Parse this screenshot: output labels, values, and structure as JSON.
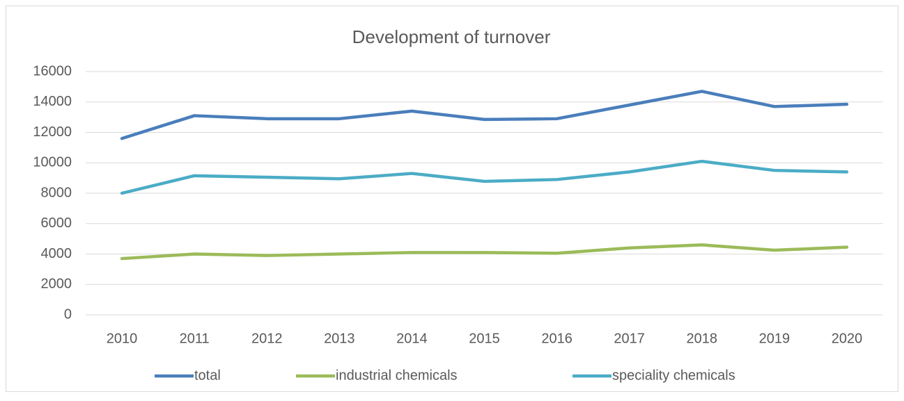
{
  "chart_data": {
    "type": "line",
    "title": "Development of turnover",
    "categories": [
      "2010",
      "2011",
      "2012",
      "2013",
      "2014",
      "2015",
      "2016",
      "2017",
      "2018",
      "2019",
      "2020"
    ],
    "series": [
      {
        "name": "total",
        "color": "#4a7ebb",
        "values": [
          11600,
          13100,
          12900,
          12900,
          13400,
          12850,
          12900,
          13800,
          14700,
          13700,
          13850
        ]
      },
      {
        "name": "industrial chemicals",
        "color": "#9bbb59",
        "values": [
          3700,
          4000,
          3900,
          4000,
          4100,
          4100,
          4050,
          4400,
          4600,
          4250,
          4450
        ]
      },
      {
        "name": "speciality chemicals",
        "color": "#4bacc6",
        "values": [
          8000,
          9150,
          9050,
          8950,
          9300,
          8780,
          8900,
          9400,
          10100,
          9500,
          9400
        ]
      }
    ],
    "ylim": [
      0,
      16000
    ],
    "yticks": [
      0,
      2000,
      4000,
      6000,
      8000,
      10000,
      12000,
      14000,
      16000
    ],
    "grid": true,
    "legend": "bottom"
  }
}
